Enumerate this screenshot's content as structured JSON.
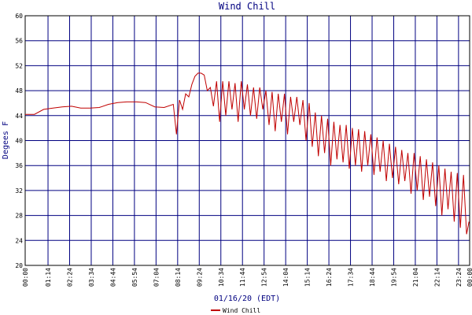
{
  "chart_data": {
    "type": "line",
    "title": "Wind Chill",
    "x_label": "01/16/20 (EDT)",
    "y_label": "Degees F",
    "legend": "bottom",
    "grid": true,
    "grid_color": "#000080",
    "x": [
      "00:00",
      "00:30",
      "01:00",
      "01:30",
      "02:00",
      "02:30",
      "03:00",
      "03:30",
      "04:00",
      "04:30",
      "05:00",
      "05:30",
      "06:00",
      "06:30",
      "07:00",
      "07:30",
      "08:00",
      "08:10",
      "08:20",
      "08:30",
      "08:40",
      "08:50",
      "09:00",
      "09:10",
      "09:20",
      "09:30",
      "09:40",
      "09:50",
      "10:00",
      "10:10",
      "10:20",
      "10:30",
      "10:40",
      "10:50",
      "11:00",
      "11:10",
      "11:20",
      "11:30",
      "11:40",
      "11:50",
      "12:00",
      "12:10",
      "12:20",
      "12:30",
      "12:40",
      "12:50",
      "13:00",
      "13:10",
      "13:20",
      "13:30",
      "13:40",
      "13:50",
      "14:00",
      "14:10",
      "14:20",
      "14:30",
      "14:40",
      "14:50",
      "15:00",
      "15:10",
      "15:20",
      "15:30",
      "15:40",
      "15:50",
      "16:00",
      "16:10",
      "16:20",
      "16:30",
      "16:40",
      "16:50",
      "17:00",
      "17:10",
      "17:20",
      "17:30",
      "17:40",
      "17:50",
      "18:00",
      "18:10",
      "18:20",
      "18:30",
      "18:40",
      "18:50",
      "19:00",
      "19:10",
      "19:20",
      "19:30",
      "19:40",
      "19:50",
      "20:00",
      "20:10",
      "20:20",
      "20:30",
      "20:40",
      "20:50",
      "21:00",
      "21:10",
      "21:20",
      "21:30",
      "21:40",
      "21:50",
      "22:00",
      "22:10",
      "22:20",
      "22:30",
      "22:40",
      "22:50",
      "23:00",
      "23:10",
      "23:20",
      "23:30",
      "23:40",
      "23:50",
      "23:58"
    ],
    "series": [
      {
        "name": "Wind Chill",
        "color": "#c00000",
        "values": [
          44.2,
          44.2,
          45,
          45.2,
          45.4,
          45.5,
          45.2,
          45.2,
          45.3,
          45.8,
          46.1,
          46.2,
          46.2,
          46.1,
          45.4,
          45.3,
          45.8,
          41,
          46.5,
          45,
          47.5,
          47,
          49,
          50.3,
          50.8,
          50.8,
          50.5,
          48,
          48.5,
          45.5,
          49.5,
          43,
          49.5,
          44,
          49.5,
          45,
          49.2,
          43,
          49.5,
          45,
          49,
          44,
          48.5,
          43.5,
          48.5,
          45,
          48,
          42.5,
          47.8,
          41.5,
          47.5,
          43,
          47.5,
          41,
          47,
          43,
          47,
          42.5,
          46.5,
          40,
          46,
          39,
          44.5,
          37.5,
          44,
          38,
          43.5,
          36,
          43,
          37,
          42.5,
          36.5,
          42.5,
          35.5,
          42,
          36,
          41.8,
          35,
          41.5,
          36,
          41,
          34.5,
          40.5,
          35,
          40,
          33.5,
          39.5,
          34,
          39,
          33,
          38.5,
          33.5,
          38,
          31.5,
          38,
          32,
          37.5,
          30.5,
          37,
          31,
          36.5,
          29.5,
          36,
          28,
          35.5,
          29,
          35,
          27,
          34.8,
          26,
          34.5,
          25,
          27
        ]
      }
    ],
    "xlim": [
      "00:00",
      "00:00"
    ],
    "xticks": [
      "00:00",
      "01:14",
      "02:24",
      "03:34",
      "04:44",
      "05:54",
      "07:04",
      "08:14",
      "09:24",
      "10:34",
      "11:44",
      "12:54",
      "14:04",
      "15:14",
      "16:24",
      "17:34",
      "18:44",
      "19:54",
      "21:04",
      "22:14",
      "23:24",
      "00:00"
    ],
    "ylim": [
      20,
      60
    ],
    "yticks": [
      20,
      24,
      28,
      32,
      36,
      40,
      44,
      48,
      52,
      56,
      60
    ]
  }
}
